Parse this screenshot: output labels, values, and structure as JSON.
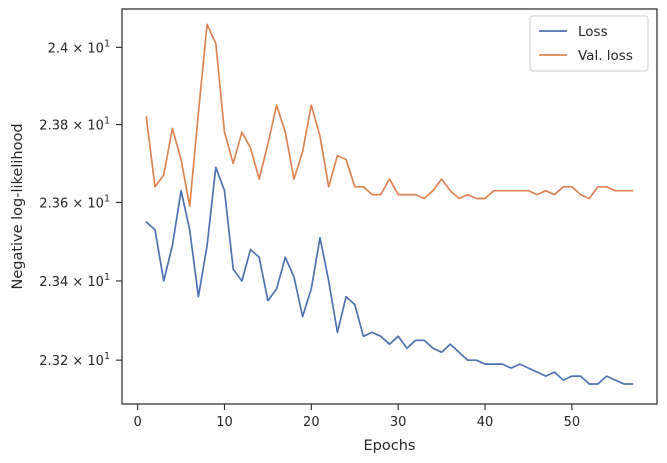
{
  "chart_data": {
    "type": "line",
    "xlabel": "Epochs",
    "ylabel": "Negative log-likelihood",
    "xlim": [
      -1.8,
      59.8
    ],
    "ylim": [
      23.09,
      24.1
    ],
    "y_scale": "log",
    "x_ticks": [
      0,
      10,
      20,
      30,
      40,
      50
    ],
    "x_tick_labels": [
      "0",
      "10",
      "20",
      "30",
      "40",
      "50"
    ],
    "y_ticks": [
      23.2,
      23.4,
      23.6,
      23.8,
      24.0
    ],
    "y_tick_labels": [
      {
        "mantissa": "2.32",
        "exp": "1"
      },
      {
        "mantissa": "2.34",
        "exp": "1"
      },
      {
        "mantissa": "2.36",
        "exp": "1"
      },
      {
        "mantissa": "2.38",
        "exp": "1"
      },
      {
        "mantissa": "2.4",
        "exp": "1"
      }
    ],
    "grid": false,
    "legend_position": "top-right",
    "series": [
      {
        "name": "Loss",
        "color": "#4c72b0",
        "x": [
          1,
          2,
          3,
          4,
          5,
          6,
          7,
          8,
          9,
          10,
          11,
          12,
          13,
          14,
          15,
          16,
          17,
          18,
          19,
          20,
          21,
          22,
          23,
          24,
          25,
          26,
          27,
          28,
          29,
          30,
          31,
          32,
          33,
          34,
          35,
          36,
          37,
          38,
          39,
          40,
          41,
          42,
          43,
          44,
          45,
          46,
          47,
          48,
          49,
          50,
          51,
          52,
          53,
          54,
          55,
          56,
          57
        ],
        "values": [
          23.55,
          23.53,
          23.4,
          23.49,
          23.63,
          23.53,
          23.36,
          23.49,
          23.69,
          23.63,
          23.43,
          23.4,
          23.48,
          23.46,
          23.35,
          23.38,
          23.46,
          23.41,
          23.31,
          23.38,
          23.51,
          23.4,
          23.27,
          23.36,
          23.34,
          23.26,
          23.27,
          23.26,
          23.24,
          23.26,
          23.23,
          23.25,
          23.25,
          23.23,
          23.22,
          23.24,
          23.22,
          23.2,
          23.2,
          23.19,
          23.19,
          23.19,
          23.18,
          23.19,
          23.18,
          23.17,
          23.16,
          23.17,
          23.15,
          23.16,
          23.16,
          23.14,
          23.14,
          23.16,
          23.15,
          23.14,
          23.14
        ]
      },
      {
        "name": "Val. loss",
        "color": "#dd8452",
        "x": [
          1,
          2,
          3,
          4,
          5,
          6,
          7,
          8,
          9,
          10,
          11,
          12,
          13,
          14,
          15,
          16,
          17,
          18,
          19,
          20,
          21,
          22,
          23,
          24,
          25,
          26,
          27,
          28,
          29,
          30,
          31,
          32,
          33,
          34,
          35,
          36,
          37,
          38,
          39,
          40,
          41,
          42,
          43,
          44,
          45,
          46,
          47,
          48,
          49,
          50,
          51,
          52,
          53,
          54,
          55,
          56,
          57
        ],
        "values": [
          23.82,
          23.64,
          23.67,
          23.79,
          23.71,
          23.59,
          23.83,
          24.06,
          24.01,
          23.78,
          23.7,
          23.78,
          23.74,
          23.66,
          23.75,
          23.85,
          23.78,
          23.66,
          23.73,
          23.85,
          23.77,
          23.64,
          23.72,
          23.71,
          23.64,
          23.64,
          23.62,
          23.62,
          23.66,
          23.62,
          23.62,
          23.62,
          23.61,
          23.63,
          23.66,
          23.63,
          23.61,
          23.62,
          23.61,
          23.61,
          23.63,
          23.63,
          23.63,
          23.63,
          23.63,
          23.62,
          23.63,
          23.62,
          23.64,
          23.64,
          23.62,
          23.61,
          23.64,
          23.64,
          23.63,
          23.63,
          23.63
        ]
      }
    ]
  }
}
